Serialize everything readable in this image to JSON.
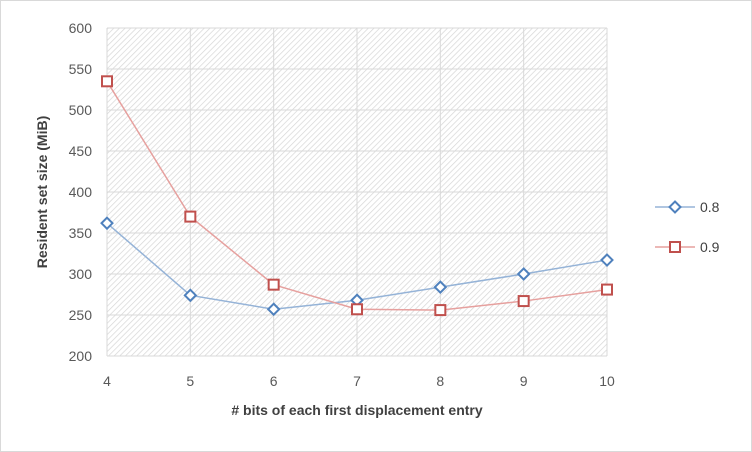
{
  "chart_data": {
    "type": "line",
    "xlabel": "# bits of each first displacement entry",
    "ylabel": "Resident set size (MiB)",
    "x": [
      4,
      5,
      6,
      7,
      8,
      9,
      10
    ],
    "ylim": [
      200,
      600
    ],
    "yticks": [
      200,
      250,
      300,
      350,
      400,
      450,
      500,
      550,
      600
    ],
    "grid": "hatched plot area",
    "legend_position": "right",
    "series": [
      {
        "name": "0.8",
        "values": [
          362,
          274,
          257,
          268,
          284,
          300,
          317
        ],
        "color": "#4f81bd",
        "line_color": "#95b3d7",
        "marker": "diamond"
      },
      {
        "name": "0.9",
        "values": [
          535,
          370,
          287,
          257,
          256,
          267,
          281
        ],
        "color": "#c0504d",
        "line_color": "#e6a09e",
        "marker": "square"
      }
    ]
  }
}
